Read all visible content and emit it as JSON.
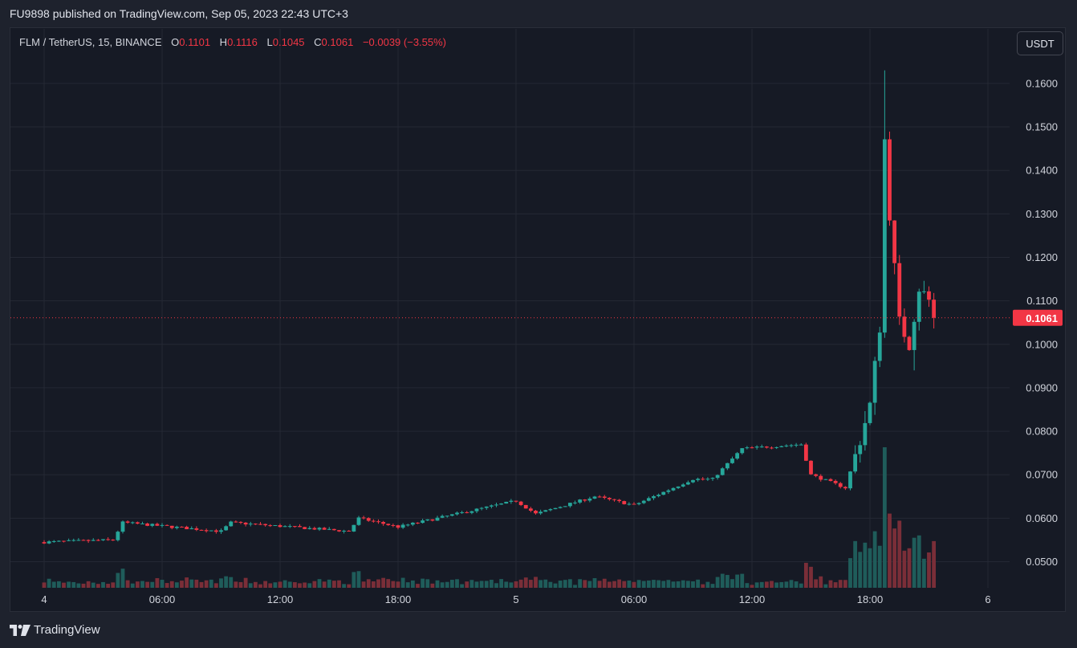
{
  "header": {
    "published_text": "FU9898 published on TradingView.com, Sep 05, 2023 22:43 UTC+3"
  },
  "legend": {
    "symbol": "FLM / TetherUS, 15, BINANCE",
    "o_label": "O",
    "o_value": "0.1101",
    "h_label": "H",
    "h_value": "0.1116",
    "l_label": "L",
    "l_value": "0.1045",
    "c_label": "C",
    "c_value": "0.1061",
    "change": "−0.0039 (−3.55%)"
  },
  "currency_button": "USDT",
  "footer": {
    "brand": "TradingView"
  },
  "colors": {
    "up": "#26a69a",
    "down": "#f23645",
    "volume_up": "#1f5c5a",
    "volume_down": "#7a2e38",
    "grid": "#242834",
    "price_line": "#f23645"
  },
  "chart_data": {
    "type": "candlestick",
    "symbol": "FLM / TetherUS",
    "interval": "15",
    "exchange": "BINANCE",
    "ylim": [
      0.044,
      0.167
    ],
    "y_ticks": [
      "0.1600",
      "0.1500",
      "0.1400",
      "0.1300",
      "0.1200",
      "0.1100",
      "0.1000",
      "0.0900",
      "0.0800",
      "0.0700",
      "0.0600",
      "0.0500"
    ],
    "x_ticks": [
      "4",
      "06:00",
      "12:00",
      "18:00",
      "5",
      "06:00",
      "12:00",
      "18:00",
      "6"
    ],
    "last_price": "0.1061",
    "key_points": [
      {
        "time": "Sep 4 00:00",
        "close": 0.0545
      },
      {
        "time": "Sep 4 03:30",
        "close": 0.055
      },
      {
        "time": "Sep 4 04:00",
        "close": 0.059
      },
      {
        "time": "Sep 4 09:00",
        "close": 0.057
      },
      {
        "time": "Sep 4 09:30",
        "close": 0.059
      },
      {
        "time": "Sep 4 15:30",
        "close": 0.057
      },
      {
        "time": "Sep 4 16:00",
        "close": 0.06
      },
      {
        "time": "Sep 4 18:00",
        "close": 0.058
      },
      {
        "time": "Sep 5 00:00",
        "close": 0.064
      },
      {
        "time": "Sep 5 01:00",
        "close": 0.061
      },
      {
        "time": "Sep 5 04:00",
        "close": 0.065
      },
      {
        "time": "Sep 5 06:00",
        "close": 0.063
      },
      {
        "time": "Sep 5 09:00",
        "close": 0.069
      },
      {
        "time": "Sep 5 10:00",
        "close": 0.069
      },
      {
        "time": "Sep 5 11:30",
        "close": 0.076
      },
      {
        "time": "Sep 5 14:30",
        "close": 0.077
      },
      {
        "time": "Sep 5 15:00",
        "close": 0.07
      },
      {
        "time": "Sep 5 16:45",
        "close": 0.067
      },
      {
        "time": "Sep 5 17:30",
        "close": 0.078
      },
      {
        "time": "Sep 5 18:00",
        "close": 0.086
      },
      {
        "time": "Sep 5 18:30",
        "close": 0.104
      },
      {
        "time": "Sep 5 18:45",
        "close": 0.147
      },
      {
        "time": "Sep 5 19:00",
        "close": 0.13
      },
      {
        "time": "Sep 5 19:30",
        "close": 0.105
      },
      {
        "time": "Sep 5 20:00",
        "close": 0.1
      },
      {
        "time": "Sep 5 20:30",
        "close": 0.113
      },
      {
        "time": "Sep 5 21:00",
        "close": 0.1101
      },
      {
        "time": "Sep 5 21:15",
        "close": 0.1061
      }
    ],
    "spikes": [
      {
        "time": "Sep 5 18:45",
        "high": 0.163
      },
      {
        "time": "Sep 5 20:15",
        "low": 0.094
      }
    ]
  }
}
